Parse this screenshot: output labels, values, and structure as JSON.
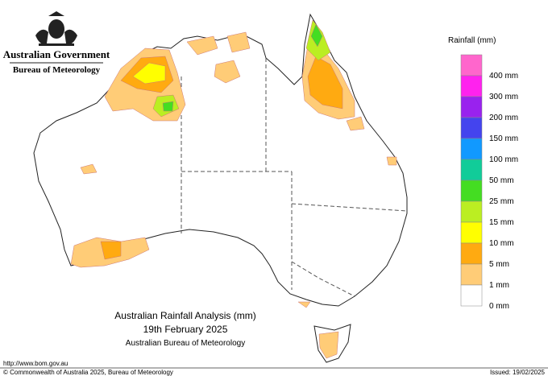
{
  "header": {
    "government": "Australian Government",
    "agency": "Bureau of Meteorology"
  },
  "legend": {
    "title": "Rainfall (mm)",
    "items": [
      {
        "label": "400 mm",
        "color": "#ff66cc"
      },
      {
        "label": "300 mm",
        "color": "#ff22ee"
      },
      {
        "label": "200 mm",
        "color": "#9922ee"
      },
      {
        "label": "150 mm",
        "color": "#4444ee"
      },
      {
        "label": "100 mm",
        "color": "#1199ff"
      },
      {
        "label": "50 mm",
        "color": "#11cc99"
      },
      {
        "label": "25 mm",
        "color": "#44dd22"
      },
      {
        "label": "15 mm",
        "color": "#bbee22"
      },
      {
        "label": "10 mm",
        "color": "#ffff00"
      },
      {
        "label": "5 mm",
        "color": "#ffaa11"
      },
      {
        "label": "1 mm",
        "color": "#ffcc77"
      },
      {
        "label": "0 mm",
        "color": "#ffffff"
      }
    ]
  },
  "map": {
    "title": "Australian Rainfall Analysis (mm)",
    "date": "19th February 2025",
    "source": "Australian Bureau of Meteorology"
  },
  "footer": {
    "url": "http://www.bom.gov.au",
    "copyright": "© Commonwealth of Australia 2025, Bureau of Meteorology",
    "issued": "Issued: 19/02/2025"
  }
}
